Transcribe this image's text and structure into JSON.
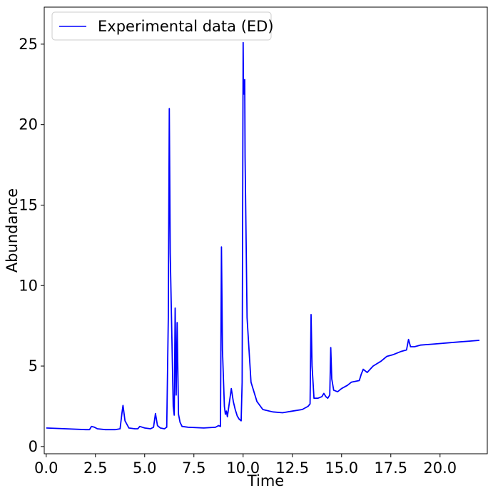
{
  "chart_data": {
    "type": "line",
    "title": "",
    "xlabel": "Time",
    "ylabel": "Abundance",
    "xlim": [
      -0.1,
      22.4
    ],
    "ylim": [
      -0.45,
      27.3
    ],
    "xticks": [
      0.0,
      2.5,
      5.0,
      7.5,
      10.0,
      12.5,
      15.0,
      17.5,
      20.0
    ],
    "xtick_labels": [
      "0.0",
      "2.5",
      "5.0",
      "7.5",
      "10.0",
      "12.5",
      "15.0",
      "17.5",
      "20.0"
    ],
    "yticks": [
      0,
      5,
      10,
      15,
      20,
      25
    ],
    "ytick_labels": [
      "0",
      "5",
      "10",
      "15",
      "20",
      "25"
    ],
    "grid": false,
    "legend_position": "top-left",
    "series": [
      {
        "name": "Experimental data (ED)",
        "color": "#0000ff",
        "x": [
          0.0,
          1.0,
          2.0,
          2.2,
          2.3,
          2.45,
          2.6,
          3.0,
          3.5,
          3.75,
          3.85,
          3.9,
          4.0,
          4.2,
          4.5,
          4.65,
          4.75,
          5.0,
          5.3,
          5.45,
          5.55,
          5.65,
          5.8,
          6.0,
          6.12,
          6.2,
          6.25,
          6.3,
          6.45,
          6.5,
          6.55,
          6.6,
          6.65,
          6.72,
          6.8,
          6.9,
          7.2,
          8.0,
          8.6,
          8.75,
          8.85,
          8.9,
          8.95,
          9.05,
          9.1,
          9.15,
          9.2,
          9.3,
          9.4,
          9.5,
          9.6,
          9.7,
          9.8,
          9.9,
          9.95,
          10.0,
          10.02,
          10.05,
          10.08,
          10.1,
          10.2,
          10.4,
          10.7,
          11.0,
          11.5,
          12.0,
          12.5,
          13.0,
          13.3,
          13.4,
          13.45,
          13.5,
          13.6,
          13.8,
          14.0,
          14.1,
          14.2,
          14.3,
          14.4,
          14.45,
          14.5,
          14.6,
          14.8,
          15.0,
          15.3,
          15.5,
          15.9,
          16.0,
          16.1,
          16.3,
          16.6,
          17.0,
          17.3,
          17.6,
          18.0,
          18.3,
          18.4,
          18.5,
          18.7,
          19.0,
          19.5,
          20.0,
          20.5,
          21.0,
          21.5,
          22.0
        ],
        "y": [
          1.15,
          1.1,
          1.05,
          1.05,
          1.25,
          1.2,
          1.1,
          1.05,
          1.05,
          1.1,
          2.1,
          2.55,
          1.6,
          1.15,
          1.1,
          1.1,
          1.25,
          1.15,
          1.1,
          1.2,
          2.05,
          1.3,
          1.15,
          1.1,
          1.2,
          8.0,
          21.0,
          12.0,
          2.5,
          1.95,
          8.6,
          3.2,
          7.7,
          2.0,
          1.5,
          1.25,
          1.2,
          1.15,
          1.2,
          1.3,
          1.25,
          12.4,
          6.0,
          2.5,
          2.0,
          2.2,
          1.85,
          2.7,
          3.6,
          2.8,
          2.3,
          1.9,
          1.7,
          1.6,
          4.0,
          25.1,
          22.0,
          21.9,
          22.8,
          18.0,
          8.0,
          4.0,
          2.8,
          2.3,
          2.15,
          2.1,
          2.2,
          2.3,
          2.5,
          2.65,
          8.2,
          5.0,
          3.0,
          3.0,
          3.1,
          3.3,
          3.1,
          3.0,
          3.2,
          6.15,
          4.2,
          3.5,
          3.4,
          3.6,
          3.8,
          4.0,
          4.1,
          4.5,
          4.8,
          4.6,
          5.0,
          5.3,
          5.6,
          5.7,
          5.9,
          6.0,
          6.65,
          6.2,
          6.2,
          6.3,
          6.35,
          6.4,
          6.45,
          6.5,
          6.55,
          6.6
        ]
      }
    ]
  }
}
